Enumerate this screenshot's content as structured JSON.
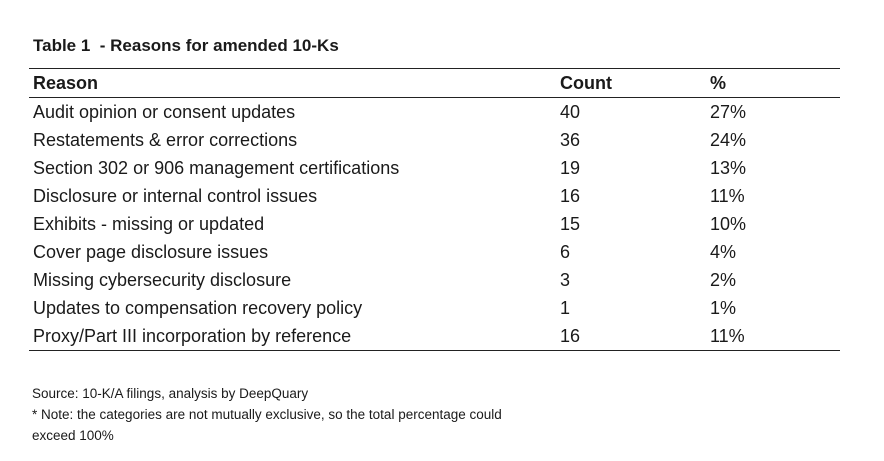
{
  "title": "Table 1  - Reasons for amended 10-Ks",
  "table": {
    "headers": {
      "reason": "Reason",
      "count": "Count",
      "pct": "%"
    },
    "rows": [
      {
        "reason": "Audit opinion or consent updates",
        "count": "40",
        "pct": "27%"
      },
      {
        "reason": "Restatements & error corrections",
        "count": "36",
        "pct": "24%"
      },
      {
        "reason": "Section 302 or 906 management certifications",
        "count": "19",
        "pct": "13%"
      },
      {
        "reason": "Disclosure or internal control issues",
        "count": "16",
        "pct": "11%"
      },
      {
        "reason": "Exhibits - missing or updated",
        "count": "15",
        "pct": "10%"
      },
      {
        "reason": "Cover page disclosure issues",
        "count": "6",
        "pct": "4%"
      },
      {
        "reason": "Missing cybersecurity disclosure",
        "count": "3",
        "pct": "2%"
      },
      {
        "reason": "Updates to compensation recovery policy",
        "count": "1",
        "pct": "1%"
      },
      {
        "reason": "Proxy/Part III incorporation by reference",
        "count": "16",
        "pct": "11%"
      }
    ]
  },
  "source": "Source: 10-K/A filings, analysis by DeepQuary",
  "note": "* Note: the categories are not mutually exclusive, so the total percentage could exceed 100%"
}
